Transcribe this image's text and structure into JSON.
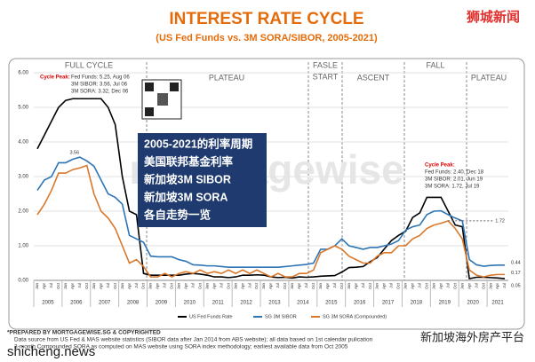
{
  "chart_data": {
    "type": "line",
    "title": "INTEREST RATE CYCLE",
    "subtitle": "(US Fed Funds vs. 3M SORA/SIBOR, 2005-2021)",
    "brand": "狮城新闻",
    "categories": [
      "Jan",
      "Apr",
      "Jul",
      "Oct",
      "Jan",
      "Apr",
      "Jul",
      "Oct",
      "Jan",
      "Apr",
      "Jul",
      "Oct",
      "Jan",
      "Apr",
      "Jul",
      "Oct",
      "Jan",
      "Apr",
      "Jul",
      "Oct",
      "Jan",
      "Apr",
      "Jul",
      "Oct",
      "Jan",
      "Apr",
      "Jul",
      "Oct",
      "Jan",
      "Apr",
      "Jul",
      "Oct",
      "Jan",
      "Apr",
      "Jul",
      "Oct",
      "Jan",
      "Apr",
      "Jul",
      "Oct",
      "Jan",
      "Apr",
      "Jul",
      "Oct",
      "Jan",
      "Apr",
      "Jul",
      "Oct",
      "Jan",
      "Apr",
      "Jul",
      "Oct",
      "Jan",
      "Apr",
      "Jul",
      "Oct",
      "Jan",
      "Apr",
      "Jul",
      "Oct",
      "Jan",
      "Apr",
      "Jul",
      "Oct",
      "Jan",
      "Apr",
      "Jul"
    ],
    "year_labels": [
      "2005",
      "2006",
      "2007",
      "2008",
      "2009",
      "2010",
      "2011",
      "2012",
      "2013",
      "2014",
      "2015",
      "2016",
      "2017",
      "2018",
      "2019",
      "2020",
      "2021"
    ],
    "series": [
      {
        "name": "US Fed Funds Rate",
        "color": "#000000",
        "values": [
          3.8,
          4.2,
          4.6,
          5.0,
          5.2,
          5.25,
          5.25,
          5.25,
          5.25,
          5.25,
          5.0,
          4.5,
          3.0,
          2.0,
          1.9,
          0.2,
          0.15,
          0.15,
          0.15,
          0.15,
          0.15,
          0.18,
          0.2,
          0.18,
          0.15,
          0.1,
          0.1,
          0.08,
          0.1,
          0.15,
          0.15,
          0.16,
          0.15,
          0.1,
          0.08,
          0.09,
          0.07,
          0.1,
          0.09,
          0.1,
          0.12,
          0.13,
          0.14,
          0.24,
          0.37,
          0.38,
          0.4,
          0.54,
          0.66,
          0.91,
          1.15,
          1.3,
          1.42,
          1.82,
          1.95,
          2.4,
          2.4,
          2.4,
          2.0,
          1.6,
          1.55,
          0.05,
          0.09,
          0.09,
          0.08,
          0.07,
          0.05
        ]
      },
      {
        "name": "SG 3M SIBOR",
        "color": "#2e75b6",
        "values": [
          2.6,
          2.9,
          3.0,
          3.4,
          3.4,
          3.5,
          3.56,
          3.45,
          3.3,
          2.9,
          2.5,
          2.4,
          2.2,
          1.3,
          1.2,
          1.1,
          0.7,
          0.68,
          0.68,
          0.68,
          0.6,
          0.55,
          0.45,
          0.44,
          0.42,
          0.42,
          0.4,
          0.38,
          0.38,
          0.38,
          0.38,
          0.38,
          0.38,
          0.38,
          0.38,
          0.4,
          0.42,
          0.44,
          0.46,
          0.5,
          0.9,
          0.9,
          1.0,
          1.2,
          1.0,
          0.95,
          0.9,
          0.95,
          0.95,
          1.0,
          1.05,
          1.15,
          1.45,
          1.55,
          1.6,
          1.9,
          2.0,
          2.01,
          1.9,
          1.8,
          1.72,
          0.6,
          0.45,
          0.41,
          0.43,
          0.44,
          0.44
        ]
      },
      {
        "name": "SG 3M SORA (Compounded)",
        "color": "#d9782b",
        "values": [
          1.9,
          2.2,
          2.6,
          3.1,
          3.1,
          3.2,
          3.25,
          3.32,
          2.5,
          2.0,
          1.8,
          1.5,
          1.0,
          0.5,
          0.6,
          0.4,
          0.1,
          0.1,
          0.2,
          0.1,
          0.2,
          0.25,
          0.2,
          0.3,
          0.2,
          0.25,
          0.2,
          0.3,
          0.2,
          0.3,
          0.2,
          0.3,
          0.2,
          0.1,
          0.2,
          0.1,
          0.1,
          0.2,
          0.2,
          0.3,
          0.8,
          0.9,
          1.0,
          0.9,
          0.7,
          0.6,
          0.5,
          0.5,
          0.7,
          0.8,
          0.8,
          1.0,
          1.0,
          1.2,
          1.3,
          1.5,
          1.6,
          1.65,
          1.72,
          1.5,
          1.2,
          0.3,
          0.15,
          0.1,
          0.15,
          0.17,
          0.17
        ]
      }
    ],
    "ylim": [
      0,
      6
    ],
    "yticks": [
      {
        "value": 0,
        "label": "0.00"
      },
      {
        "value": 1,
        "label": "1.00"
      },
      {
        "value": 2,
        "label": "2.00"
      },
      {
        "value": 3,
        "label": "3.00"
      },
      {
        "value": 4,
        "label": "4.00"
      },
      {
        "value": 5,
        "label": "5.00"
      },
      {
        "value": 6,
        "label": "6.00"
      }
    ],
    "grid": true,
    "phase_labels": [
      "FULL CYCLE",
      "PLATEAU",
      "FASLE",
      "START",
      "ASCENT",
      "FALL",
      "PLATEAU"
    ],
    "peak_left": [
      "Cycle Peak:",
      "Fed Funds: 5.25, Aug 06",
      "3M SIBOR: 3.56, Jul 06",
      "3M SORA: 3.32, Dec 06"
    ],
    "peak_right": [
      "Cycle Peak:",
      "Fed Funds: 2.40, Dec 18",
      "3M SIBOR: 2.01, Jun 19",
      "3M SORA: 1.72, Jul 19"
    ],
    "overlay": [
      "2005-2021的利率周期",
      "美国联邦基金利率",
      "新加坡3M SIBOR",
      "新加坡3M SORA",
      "各自走势一览"
    ],
    "watermark": "mortgagewise",
    "footer": [
      "*PREPARED BY MORTGAGEWISE.SG & COPYRIGHTED",
      "Data source from US Fed & MAS website statistics (SIBOR data after Jan 2014 from ABS website); all data based on 1st calendar pulication",
      "3-month Compounded SORA as computed on MAS website using SORA index methodology; earliest available data from Oct 2005"
    ],
    "site": "shicheng.news",
    "platform": "新加坡海外房产平台"
  }
}
